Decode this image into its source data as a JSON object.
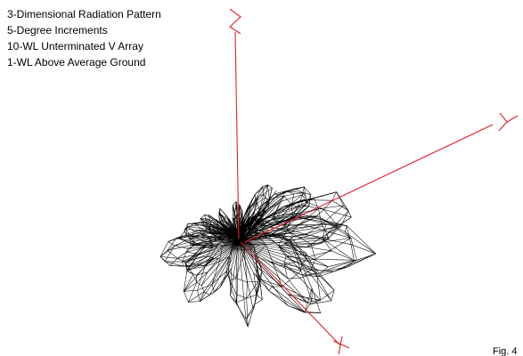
{
  "caption": {
    "lines": [
      "3-Dimensional Radiation Pattern",
      "5-Degree Increments",
      "10-WL Unterminated V Array",
      "1-WL Above Average Ground"
    ]
  },
  "figure_label": "Fig. 4",
  "colors": {
    "axis": "#e0202a",
    "mesh": "#000000",
    "background": "#ffffff"
  },
  "axes": {
    "z_glyph": "z-letter-glyph",
    "y_glyph": "y-letter-glyph",
    "x_glyph": "x-letter-glyph"
  }
}
